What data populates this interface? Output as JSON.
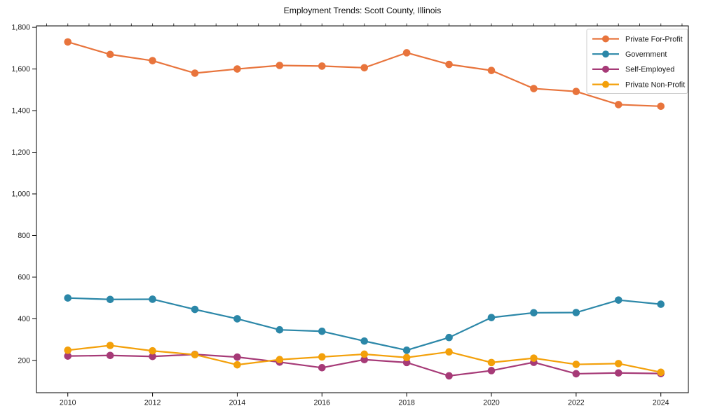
{
  "chart_data": {
    "type": "line",
    "title": "Employment Trends: Scott County, Illinois",
    "xlabel": "",
    "ylabel": "",
    "grid": false,
    "marker": "circle",
    "legend_position": "upper-right",
    "x": [
      2010,
      2011,
      2012,
      2013,
      2014,
      2015,
      2016,
      2017,
      2018,
      2019,
      2020,
      2021,
      2022,
      2023,
      2024
    ],
    "series": [
      {
        "name": "Private For-Profit",
        "color": "#e8743c",
        "values": [
          1730,
          1670,
          1640,
          1580,
          1600,
          1617,
          1614,
          1606,
          1678,
          1622,
          1593,
          1506,
          1492,
          1429,
          1421
        ]
      },
      {
        "name": "Government",
        "color": "#2b87a8",
        "values": [
          500,
          493,
          494,
          445,
          400,
          347,
          340,
          293,
          249,
          310,
          406,
          429,
          430,
          490,
          470
        ]
      },
      {
        "name": "Self-Employed",
        "color": "#a63a77",
        "values": [
          221,
          224,
          219,
          229,
          216,
          192,
          165,
          204,
          190,
          126,
          151,
          191,
          136,
          140,
          137
        ]
      },
      {
        "name": "Private Non-Profit",
        "color": "#f3a00a",
        "values": [
          249,
          272,
          246,
          228,
          179,
          204,
          217,
          230,
          214,
          241,
          190,
          211,
          181,
          185,
          143
        ]
      }
    ],
    "xlim": [
      2009.26,
      2024.65
    ],
    "ylim": [
      45,
      1807
    ],
    "x_ticks": [
      2010,
      2012,
      2014,
      2016,
      2018,
      2020,
      2022,
      2024
    ],
    "x_tick_labels": [
      "2010",
      "2012",
      "2014",
      "2016",
      "2018",
      "2020",
      "2022",
      "2024"
    ],
    "y_ticks": [
      200,
      400,
      600,
      800,
      1000,
      1200,
      1400,
      1600,
      1800
    ],
    "y_tick_labels": [
      "200",
      "400",
      "600",
      "800",
      "1,000",
      "1,200",
      "1,400",
      "1,600",
      "1,800"
    ],
    "axis_color": "#000000",
    "legend_border_color": "#cccccc"
  }
}
